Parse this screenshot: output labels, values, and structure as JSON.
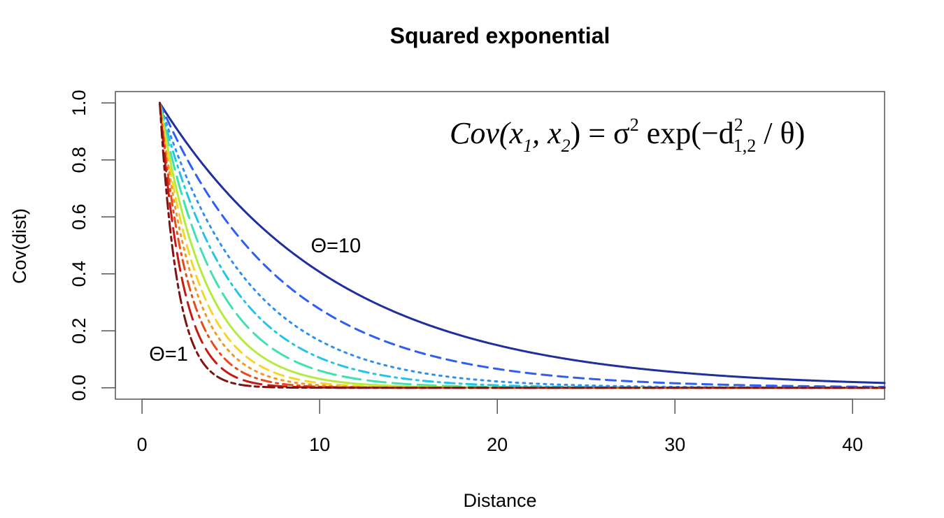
{
  "chart_data": {
    "type": "line",
    "title": "Squared exponential",
    "xlabel": "Distance",
    "ylabel": "Cov(dist)",
    "xlim": [
      -1.5,
      41.8
    ],
    "ylim": [
      -0.04,
      1.04
    ],
    "xticks": [
      0,
      10,
      20,
      30,
      40
    ],
    "yticks": [
      0.0,
      0.2,
      0.4,
      0.6,
      0.8,
      1.0
    ],
    "xtick_labels": [
      "0",
      "10",
      "20",
      "30",
      "40"
    ],
    "ytick_labels": [
      "0.0",
      "0.2",
      "0.4",
      "0.6",
      "0.8",
      "1.0"
    ],
    "grid": false,
    "x_start": 1,
    "x_end": 41.8,
    "series": [
      {
        "theta": 10,
        "color": "#1f2f9e",
        "dash": "solid"
      },
      {
        "theta": 7,
        "color": "#2f5ef2",
        "dash": "dashed"
      },
      {
        "theta": 5,
        "color": "#2f8ff0",
        "dash": "dotted"
      },
      {
        "theta": 4,
        "color": "#22c4e8",
        "dash": "dotdash"
      },
      {
        "theta": 3.2,
        "color": "#3fe0b2",
        "dash": "longdash"
      },
      {
        "theta": 2.6,
        "color": "#b4ec3e",
        "dash": "solid"
      },
      {
        "theta": 2.2,
        "color": "#f6d62a",
        "dash": "dashed"
      },
      {
        "theta": 1.9,
        "color": "#f5961f",
        "dash": "dotted"
      },
      {
        "theta": 1.6,
        "color": "#ea4a1a",
        "dash": "dotdash"
      },
      {
        "theta": 1.3,
        "color": "#c41a14",
        "dash": "longdash"
      },
      {
        "theta": 1,
        "color": "#7c1414",
        "dash": "twodash"
      }
    ],
    "annotations": [
      {
        "text": "Θ=10",
        "x": 9.5,
        "y": 0.475
      },
      {
        "text": "Θ=1",
        "x": 0.4,
        "y": 0.095
      }
    ],
    "formula": {
      "lhs": "Cov(x",
      "sub1": "1",
      "mid": ", x",
      "sub2": "2",
      "eq": ") = σ",
      "sup_sigma": "2",
      "exp": " exp(−d",
      "sup_d": "2",
      "sub_d": "1,2",
      "tail": " / θ)"
    }
  }
}
